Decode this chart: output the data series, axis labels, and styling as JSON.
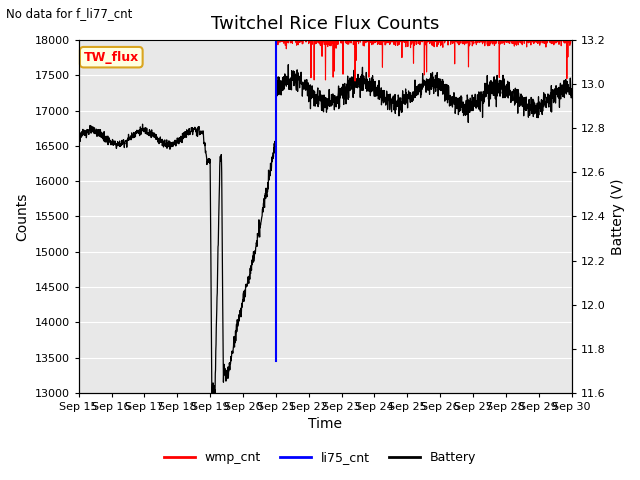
{
  "title": "Twitchel Rice Flux Counts",
  "top_left_text": "No data for f_li77_cnt",
  "annotation_box": "TW_flux",
  "xlabel": "Time",
  "ylabel_left": "Counts",
  "ylabel_right": "Battery (V)",
  "ylim_left": [
    13000,
    18000
  ],
  "ylim_right": [
    11.6,
    13.2
  ],
  "yticks_left": [
    13000,
    13500,
    14000,
    14500,
    15000,
    15500,
    16000,
    16500,
    17000,
    17500,
    18000
  ],
  "yticks_right": [
    11.6,
    11.8,
    12.0,
    12.2,
    12.4,
    12.6,
    12.8,
    13.0,
    13.2
  ],
  "xtick_labels": [
    "Sep 15",
    "Sep 16",
    "Sep 17",
    "Sep 18",
    "Sep 19",
    "Sep 20",
    "Sep 21",
    "Sep 22",
    "Sep 23",
    "Sep 24",
    "Sep 25",
    "Sep 26",
    "Sep 27",
    "Sep 28",
    "Sep 29",
    "Sep 30"
  ],
  "background_color": "#e8e8e8",
  "wmp_color": "red",
  "li75_color": "blue",
  "battery_color": "black",
  "title_fontsize": 13,
  "axis_fontsize": 10,
  "tick_fontsize": 8
}
